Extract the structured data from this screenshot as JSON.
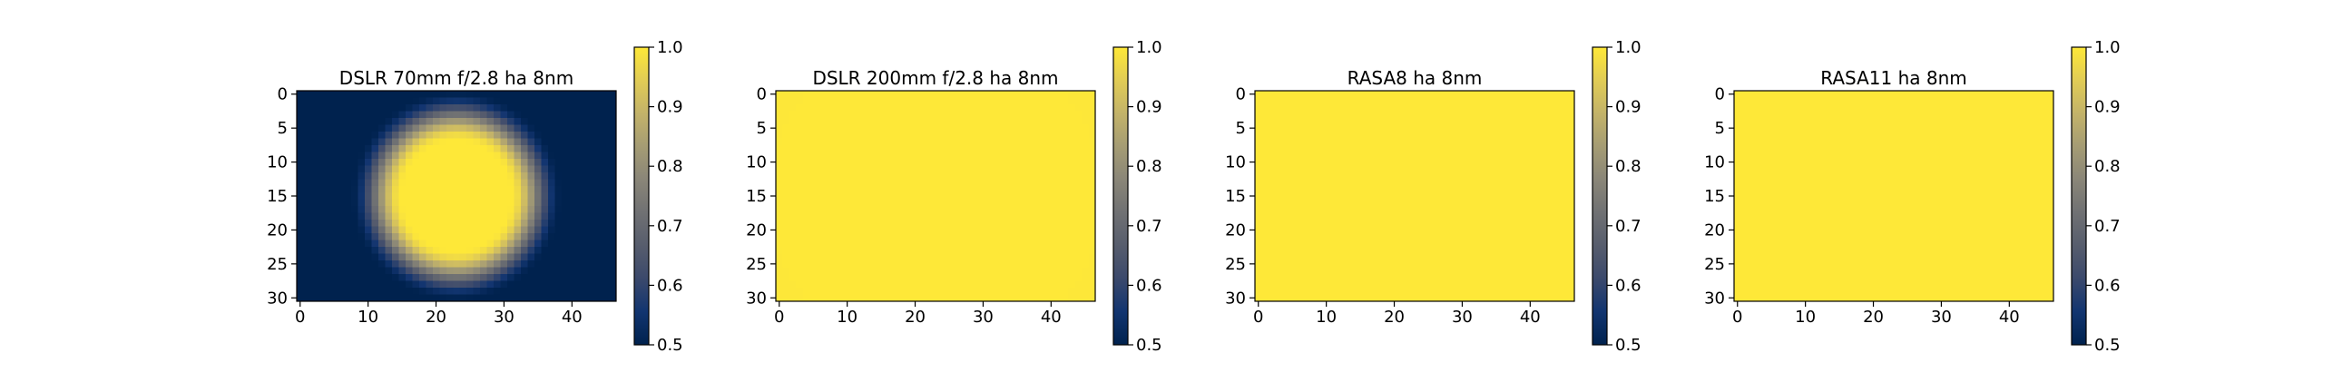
{
  "colormap": {
    "name": "cividis",
    "stops": [
      "#00224e",
      "#123570",
      "#3b496c",
      "#575d6d",
      "#707173",
      "#8a8678",
      "#a59c74",
      "#c3b369",
      "#e1cc55",
      "#fee838"
    ],
    "vmin": 0.5,
    "vmax": 1.0
  },
  "chart_data": [
    {
      "type": "heatmap",
      "title": "DSLR 70mm f/2.8 ha 8nm",
      "xlabel": "",
      "ylabel": "",
      "ncols": 47,
      "nrows": 31,
      "xlim": [
        -0.5,
        46.5
      ],
      "ylim": [
        30.5,
        -0.5
      ],
      "xticks": [
        0,
        10,
        20,
        30,
        40
      ],
      "yticks": [
        0,
        5,
        10,
        15,
        20,
        25,
        30
      ],
      "field": {
        "model": "vignette",
        "center": [
          23,
          15
        ],
        "inner_radius": 8,
        "outer_radius": 15.5,
        "min_value": 0.5,
        "max_value": 1.0
      },
      "colorbar": {
        "min": 0.5,
        "max": 1.0,
        "ticks": [
          "0.5",
          "0.6",
          "0.7",
          "0.8",
          "0.9",
          "1.0"
        ]
      }
    },
    {
      "type": "heatmap",
      "title": "DSLR 200mm f/2.8 ha 8nm",
      "xlabel": "",
      "ylabel": "",
      "ncols": 47,
      "nrows": 31,
      "xlim": [
        -0.5,
        46.5
      ],
      "ylim": [
        30.5,
        -0.5
      ],
      "xticks": [
        0,
        10,
        20,
        30,
        40
      ],
      "yticks": [
        0,
        5,
        10,
        15,
        20,
        25,
        30
      ],
      "field": {
        "model": "vignette",
        "center": [
          23,
          15
        ],
        "inner_radius": 20,
        "outer_radius": 60,
        "min_value": 0.97,
        "max_value": 1.0
      },
      "colorbar": {
        "min": 0.5,
        "max": 1.0,
        "ticks": [
          "0.5",
          "0.6",
          "0.7",
          "0.8",
          "0.9",
          "1.0"
        ]
      }
    },
    {
      "type": "heatmap",
      "title": "RASA8 ha 8nm",
      "xlabel": "",
      "ylabel": "",
      "ncols": 47,
      "nrows": 31,
      "xlim": [
        -0.5,
        46.5
      ],
      "ylim": [
        30.5,
        -0.5
      ],
      "xticks": [
        0,
        10,
        20,
        30,
        40
      ],
      "yticks": [
        0,
        5,
        10,
        15,
        20,
        25,
        30
      ],
      "field": {
        "model": "vignette",
        "center": [
          23,
          15
        ],
        "inner_radius": 22,
        "outer_radius": 70,
        "min_value": 0.985,
        "max_value": 1.0
      },
      "colorbar": {
        "min": 0.5,
        "max": 1.0,
        "ticks": [
          "0.5",
          "0.6",
          "0.7",
          "0.8",
          "0.9",
          "1.0"
        ]
      }
    },
    {
      "type": "heatmap",
      "title": "RASA11 ha 8nm",
      "xlabel": "",
      "ylabel": "",
      "ncols": 47,
      "nrows": 31,
      "xlim": [
        -0.5,
        46.5
      ],
      "ylim": [
        30.5,
        -0.5
      ],
      "xticks": [
        0,
        10,
        20,
        30,
        40
      ],
      "yticks": [
        0,
        5,
        10,
        15,
        20,
        25,
        30
      ],
      "field": {
        "model": "vignette",
        "center": [
          23,
          15
        ],
        "inner_radius": 25,
        "outer_radius": 80,
        "min_value": 0.995,
        "max_value": 1.0
      },
      "colorbar": {
        "min": 0.5,
        "max": 1.0,
        "ticks": [
          "0.5",
          "0.6",
          "0.7",
          "0.8",
          "0.9",
          "1.0"
        ]
      }
    }
  ]
}
